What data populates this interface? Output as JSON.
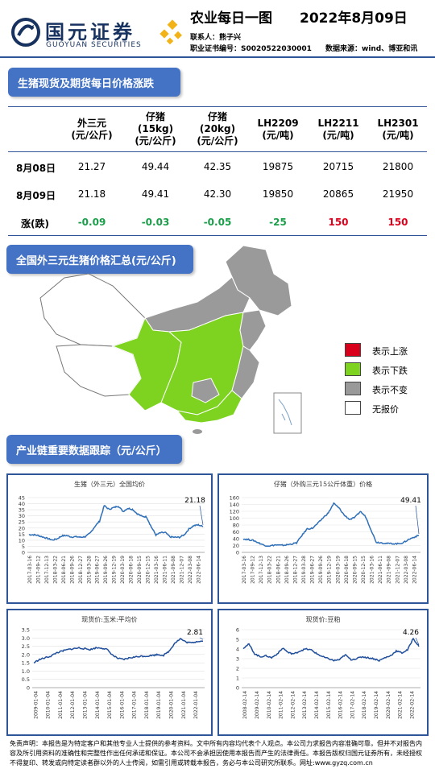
{
  "header": {
    "logo_cn": "国元证券",
    "logo_en": "GUOYUAN SECURITIES",
    "title": "农业每日一图",
    "date": "2022年8月09日",
    "contact": "联系人：熊子兴",
    "cert": "职业证书编号：S0020522030001",
    "source": "数据来源：wind、博亚和讯"
  },
  "section1": {
    "title": "生猪现货及期货每日价格涨跌",
    "columns": [
      [
        "外三元",
        "(元/公斤)"
      ],
      [
        "仔猪",
        "(15kg)",
        "(元/公斤)"
      ],
      [
        "仔猪",
        "(20kg)",
        "(元/公斤)"
      ],
      [
        "LH2209",
        "(元/吨)"
      ],
      [
        "LH2211",
        "(元/吨)"
      ],
      [
        "LH2301",
        "(元/吨)"
      ]
    ],
    "rows": [
      {
        "label": "8月08日",
        "values": [
          "21.27",
          "49.44",
          "42.35",
          "19875",
          "20715",
          "21800"
        ]
      },
      {
        "label": "8月09日",
        "values": [
          "21.18",
          "49.41",
          "42.30",
          "19850",
          "20865",
          "21950"
        ]
      },
      {
        "label": "涨(跌)",
        "values": [
          "-0.09",
          "-0.03",
          "-0.05",
          "-25",
          "150",
          "150"
        ],
        "directions": [
          "down",
          "down",
          "down",
          "down",
          "up",
          "up"
        ]
      }
    ]
  },
  "section2": {
    "title": "全国外三元生猪价格汇总(元/公斤)",
    "legend": [
      {
        "label": "表示上涨",
        "color": "#d9001b"
      },
      {
        "label": "表示下跌",
        "color": "#7ed321"
      },
      {
        "label": "表示不变",
        "color": "#999999"
      },
      {
        "label": "无报价",
        "color": "#ffffff"
      }
    ],
    "map_colors": {
      "up": "#d9001b",
      "down": "#7ed321",
      "flat": "#9a9a9a",
      "none": "#ffffff"
    }
  },
  "section3": {
    "title": "产业链重要数据跟踪（元/公斤）"
  },
  "charts": [
    {
      "chart_data": {
        "type": "line",
        "title": "生猪（外三元）全国均价",
        "ylim": [
          0,
          45
        ],
        "yticks": [
          "0",
          "5",
          "10",
          "15",
          "20",
          "25",
          "30",
          "35",
          "40",
          "45"
        ],
        "xticks": [
          "2017-03-16",
          "2017-09-12",
          "2017-12-13",
          "2018-03-22",
          "2018-06-21",
          "2018-09-26",
          "2018-12-27",
          "2019-03-28",
          "2019-06-27",
          "2019-09-26",
          "2019-12-19",
          "2020-03-19",
          "2020-06-18",
          "2020-09-15",
          "2020-12-15",
          "2021-03-16",
          "2021-06-11",
          "2021-09-08",
          "2021-12-07",
          "2022-03-08",
          "2022-06-14"
        ],
        "series": [
          {
            "values": [
              14.5,
              14.5,
              13.8,
              12.6,
              11.3,
              10.1,
              11.2,
              13.6,
              13.8,
              12.7,
              12.8,
              12.5,
              12.9,
              15.8,
              21.3,
              25.7,
              38.4,
              35.4,
              36.8,
              38.1,
              33.6,
              36.2,
              35.4,
              31.8,
              29.6,
              29.2,
              20.9,
              14.3,
              16.1,
              16.3,
              12.7,
              12.4,
              12.4,
              14.4,
              19.2,
              21.9,
              22.6,
              21.18
            ]
          }
        ],
        "annotation": "21.18",
        "color": "#2e6fb7"
      }
    },
    {
      "chart_data": {
        "type": "line",
        "title": "仔猪（外购三元15公斤体重）价格",
        "ylim": [
          0,
          160
        ],
        "yticks": [
          "0",
          "20",
          "40",
          "60",
          "80",
          "100",
          "120",
          "140",
          "160"
        ],
        "xticks": [
          "2017-03-16",
          "2017-09-12",
          "2017-12-13",
          "2018-03-22",
          "2018-06-21",
          "2018-09-26",
          "2018-12-27",
          "2019-03-28",
          "2019-06-27",
          "2019-09-26",
          "2019-12-19",
          "2020-03-19",
          "2020-06-18",
          "2020-09-15",
          "2020-12-15",
          "2021-03-16",
          "2021-06-11",
          "2021-09-08",
          "2021-12-07",
          "2022-03-08",
          "2022-06-14"
        ],
        "series": [
          {
            "values": [
              39.1,
              37.3,
              34.2,
              27.1,
              20.4,
              18.9,
              21.8,
              20.5,
              21.5,
              24.4,
              27.6,
              49.2,
              68.8,
              70.4,
              84.7,
              101.2,
              115.6,
              143.1,
              129.5,
              108.3,
              96.2,
              102.2,
              119.7,
              104.3,
              66.6,
              29.4,
              28.2,
              26.1,
              25.5,
              25.2,
              27.8,
              37.1,
              44.2,
              49.41
            ]
          }
        ],
        "annotation": "49.41",
        "color": "#2e6fb7"
      }
    },
    {
      "chart_data": {
        "type": "line",
        "title": "现货价:玉米:平均价",
        "ylim": [
          0,
          3.5
        ],
        "yticks": [
          "0",
          "0.5",
          "1.0",
          "1.5",
          "2.0",
          "2.5",
          "3.0",
          "3.5"
        ],
        "xticks": [
          "2009-01-04",
          "2010-01-04",
          "2011-01-04",
          "2012-01-04",
          "2013-01-04",
          "2014-01-04",
          "2015-01-04",
          "2016-01-04",
          "2017-01-04",
          "2018-01-04",
          "2019-01-04",
          "2020-01-04",
          "2021-01-04",
          "2022-01-04"
        ],
        "series": [
          {
            "values": [
              1.5,
              1.7,
              1.8,
              1.9,
              2.1,
              2.2,
              2.3,
              2.35,
              2.4,
              2.35,
              2.3,
              2.4,
              2.4,
              2.3,
              1.95,
              1.75,
              1.7,
              1.8,
              1.85,
              1.9,
              1.9,
              1.95,
              2.0,
              1.95,
              2.2,
              2.7,
              2.95,
              2.75,
              2.7,
              2.8,
              2.81
            ]
          }
        ],
        "annotation": "2.81",
        "color": "#1f4e9b"
      }
    },
    {
      "chart_data": {
        "type": "line",
        "title": "现货价:豆粕",
        "ylim": [
          0,
          6
        ],
        "yticks": [
          "0",
          "1",
          "2",
          "3",
          "4",
          "5",
          "6"
        ],
        "xticks": [
          "2008-02-14",
          "2009-02-14",
          "2010-02-14",
          "2011-02-14",
          "2012-02-14",
          "2013-02-14",
          "2014-02-14",
          "2015-02-14",
          "2016-02-14",
          "2017-02-14",
          "2018-02-14",
          "2019-02-14",
          "2020-02-14",
          "2021-02-14",
          "2022-02-14"
        ],
        "series": [
          {
            "values": [
              4.1,
              4.5,
              3.5,
              3.2,
              3.3,
              3.1,
              3.5,
              4.1,
              3.6,
              3.5,
              3.8,
              4.0,
              3.9,
              3.5,
              3.2,
              3.0,
              2.8,
              2.9,
              3.4,
              2.9,
              3.0,
              3.2,
              3.1,
              3.0,
              2.8,
              3.1,
              3.3,
              3.8,
              3.6,
              3.9,
              5.1,
              4.26
            ]
          }
        ],
        "annotation": "4.26",
        "color": "#1f4e9b"
      }
    }
  ],
  "footer": "免责声明：本报告是为特定客户和其他专业人士提供的参考资料。文中所有内容均代表个人观点。本公司力求报告内容准确可靠，但并不对报告内容及所引用资料的准确性和完整性作出任何承诺和保证。本公司不会承担因使用本报告而产生的法律责任。本报告版权归国元证券所有，未经授权不得复印、转发或向特定读者群以外的人士传阅，如需引用或转载本报告，务必与本公司研究所联系。网址:www.gyzq.com.cn"
}
